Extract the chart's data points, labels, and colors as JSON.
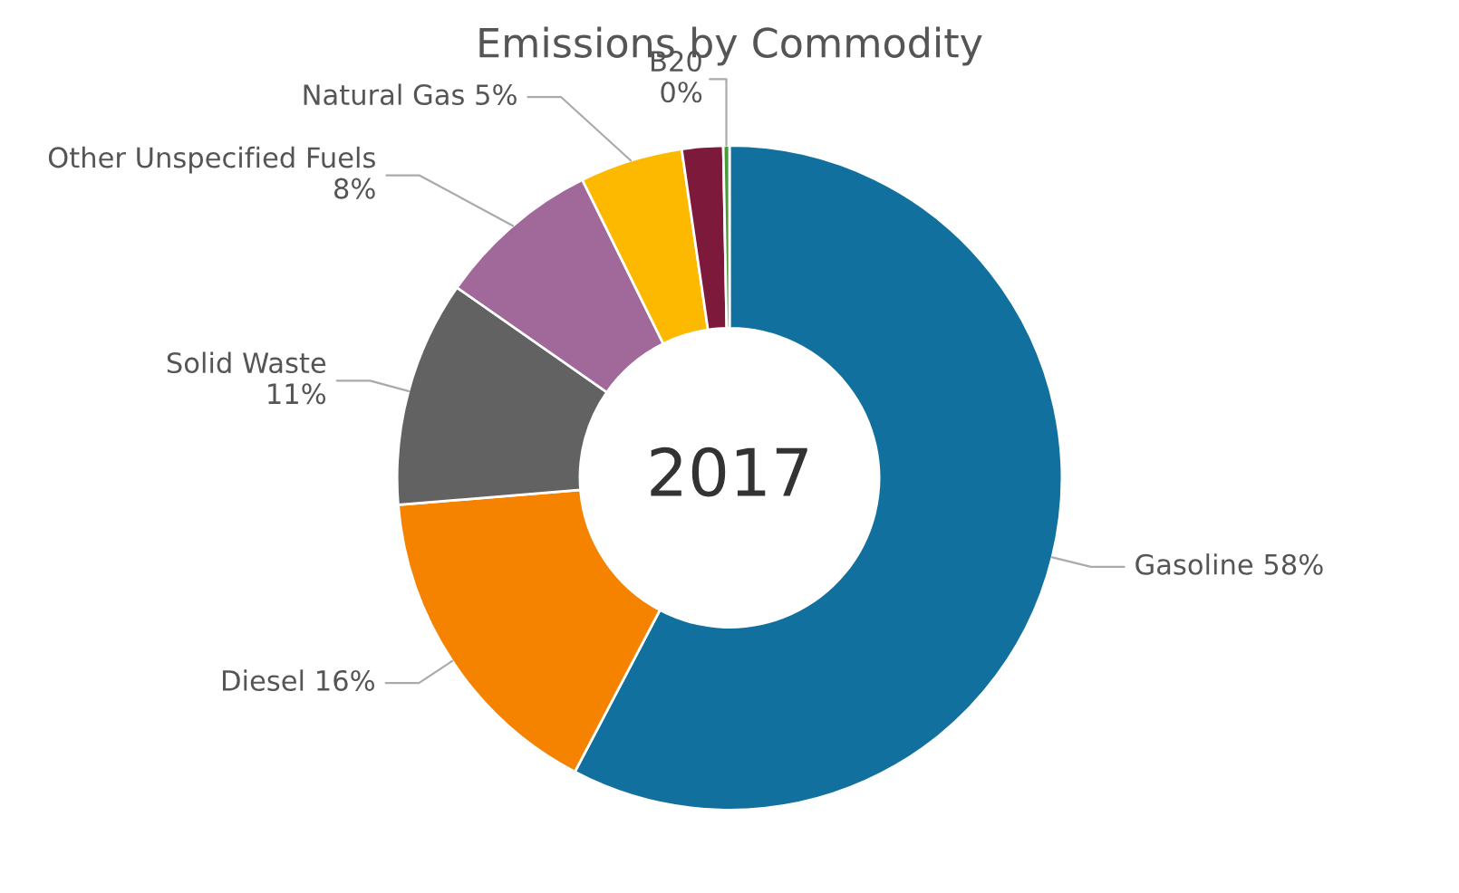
{
  "chart_data": {
    "type": "donut",
    "title": "Emissions by Commodity",
    "categories": [
      "Gasoline",
      "Diesel",
      "Solid Waste",
      "Other Unspecified Fuels",
      "Natural Gas",
      null,
      "B20"
    ],
    "values": [
      57.7,
      16,
      11,
      8,
      5,
      2,
      0.3
    ],
    "value_labels": [
      "58%",
      "16%",
      "11%",
      "8%",
      "5%",
      null,
      "0%"
    ],
    "colors": [
      "#12709e",
      "#f58300",
      "#626262",
      "#a0699a",
      "#fcb900",
      "#7d1a3c",
      "#4a9a3a"
    ],
    "annotations": [
      "2017"
    ],
    "legend": false
  }
}
